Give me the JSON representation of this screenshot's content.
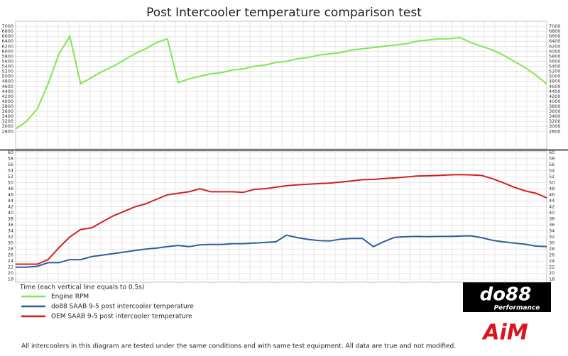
{
  "chart_data": [
    {
      "type": "line",
      "title": "Post Intercooler temperature comparison test",
      "ylim": [
        2100,
        7200
      ],
      "yticks": [
        2800,
        3000,
        3200,
        3400,
        3600,
        3800,
        4000,
        4200,
        4400,
        4600,
        4800,
        5000,
        5200,
        5400,
        5600,
        5800,
        6000,
        6200,
        6400,
        6600,
        6800,
        7000
      ],
      "grid": true,
      "series": [
        {
          "name": "Engine RPM",
          "color": "#7de84a",
          "values": [
            2900,
            3200,
            3700,
            4700,
            5900,
            6600,
            4700,
            4950,
            5200,
            5400,
            5650,
            5900,
            6100,
            6350,
            6500,
            4750,
            4900,
            5000,
            5100,
            5150,
            5250,
            5300,
            5400,
            5450,
            5550,
            5600,
            5700,
            5750,
            5850,
            5900,
            5950,
            6050,
            6100,
            6150,
            6200,
            6250,
            6300,
            6400,
            6450,
            6500,
            6500,
            6550,
            6350,
            6200,
            6050,
            5850,
            5600,
            5350,
            5050,
            4700
          ]
        }
      ]
    },
    {
      "type": "line",
      "x_label": "Time (each vertical line equals to 0,5s)",
      "ylim": [
        17,
        60.5
      ],
      "yticks": [
        18,
        20,
        22,
        24,
        26,
        28,
        30,
        32,
        34,
        36,
        38,
        40,
        42,
        44,
        46,
        48,
        50,
        52,
        54,
        56,
        58,
        60
      ],
      "grid": true,
      "series": [
        {
          "name": "do88 SAAB 9-5 post intercooler temperature",
          "color": "#2c5fa0",
          "values": [
            22,
            22,
            22.3,
            23.5,
            23.5,
            24.5,
            24.5,
            25.5,
            26,
            26.5,
            27,
            27.5,
            28,
            28.3,
            28.8,
            29.2,
            28.8,
            29.4,
            29.5,
            29.5,
            29.8,
            29.8,
            30,
            30.2,
            30.4,
            32.6,
            31.8,
            31.2,
            30.8,
            30.7,
            31.3,
            31.5,
            31.5,
            28.8,
            30.5,
            31.9,
            32.1,
            32.2,
            32.1,
            32.2,
            32.2,
            32.3,
            32.4,
            31.8,
            30.9,
            30.4,
            30,
            29.6,
            29,
            28.8
          ]
        },
        {
          "name": "OEM SAAB 9-5 post intercooler temperature",
          "color": "#d42020",
          "values": [
            23,
            23,
            23,
            24.5,
            28.5,
            32,
            34.5,
            35,
            37,
            39,
            40.5,
            42,
            43,
            44.5,
            46,
            46.5,
            47,
            48,
            47,
            47,
            47,
            46.8,
            47.8,
            48,
            48.5,
            49,
            49.3,
            49.5,
            49.7,
            49.9,
            50.2,
            50.6,
            51,
            51.1,
            51.4,
            51.6,
            51.9,
            52.2,
            52.3,
            52.4,
            52.6,
            52.7,
            52.6,
            52.4,
            51.3,
            50,
            48.5,
            47.3,
            46.5,
            45
          ]
        }
      ]
    }
  ],
  "logos": {
    "do88": "do88",
    "do88_sub": "Performance",
    "aim": "AiM"
  },
  "footer": "All intercoolers in this diagram are tested under the same conditions and with same test equipment. All data are true and not modified."
}
